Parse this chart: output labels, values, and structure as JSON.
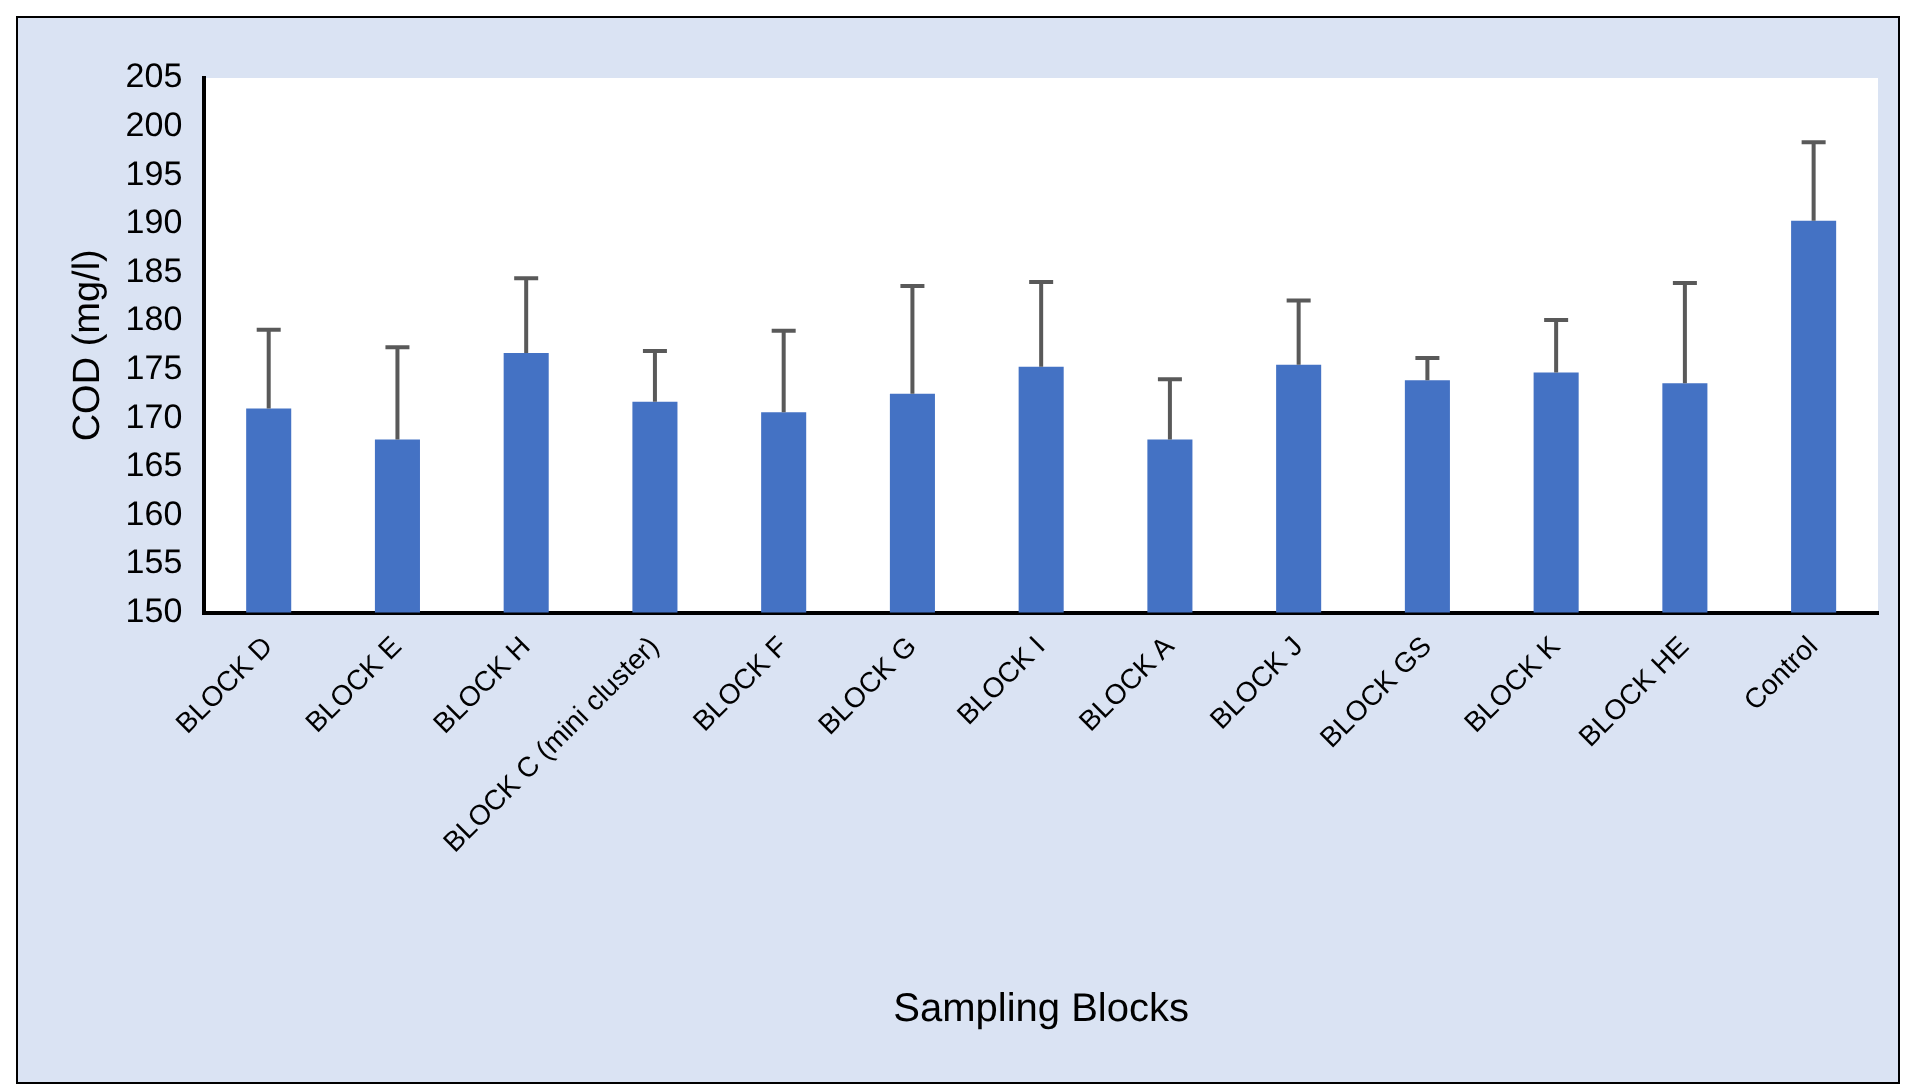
{
  "chart_data": {
    "type": "bar",
    "xlabel": "Sampling Blocks",
    "ylabel": "COD (mg/l)",
    "categories": [
      "BLOCK D",
      "BLOCK E",
      "BLOCK H",
      "BLOCK C (mini cluster)",
      "BLOCK F",
      "BLOCK G",
      "BLOCK I",
      "BLOCK A",
      "BLOCK J",
      "BLOCK GS",
      "BLOCK K",
      "BLOCK HE",
      "Control"
    ],
    "values": [
      171,
      167.8,
      176.7,
      171.7,
      170.6,
      172.5,
      175.3,
      167.8,
      175.5,
      173.9,
      174.7,
      173.6,
      190.3
    ],
    "errors": [
      [
        171,
        179.1
      ],
      [
        167.8,
        177.3
      ],
      [
        176.7,
        184.4
      ],
      [
        171.7,
        176.9
      ],
      [
        170.6,
        179
      ],
      [
        172.5,
        183.6
      ],
      [
        175.3,
        184
      ],
      [
        167.8,
        174
      ],
      [
        175.5,
        182.1
      ],
      [
        173.9,
        176.2
      ],
      [
        174.7,
        180.1
      ],
      [
        173.6,
        183.9
      ],
      [
        190.3,
        198.4
      ]
    ],
    "color": "#4472c4",
    "ylim": [
      150,
      205
    ],
    "yticks": [
      150,
      155,
      160,
      165,
      170,
      175,
      180,
      185,
      190,
      195,
      200,
      205
    ],
    "grid": false,
    "legend": false
  }
}
